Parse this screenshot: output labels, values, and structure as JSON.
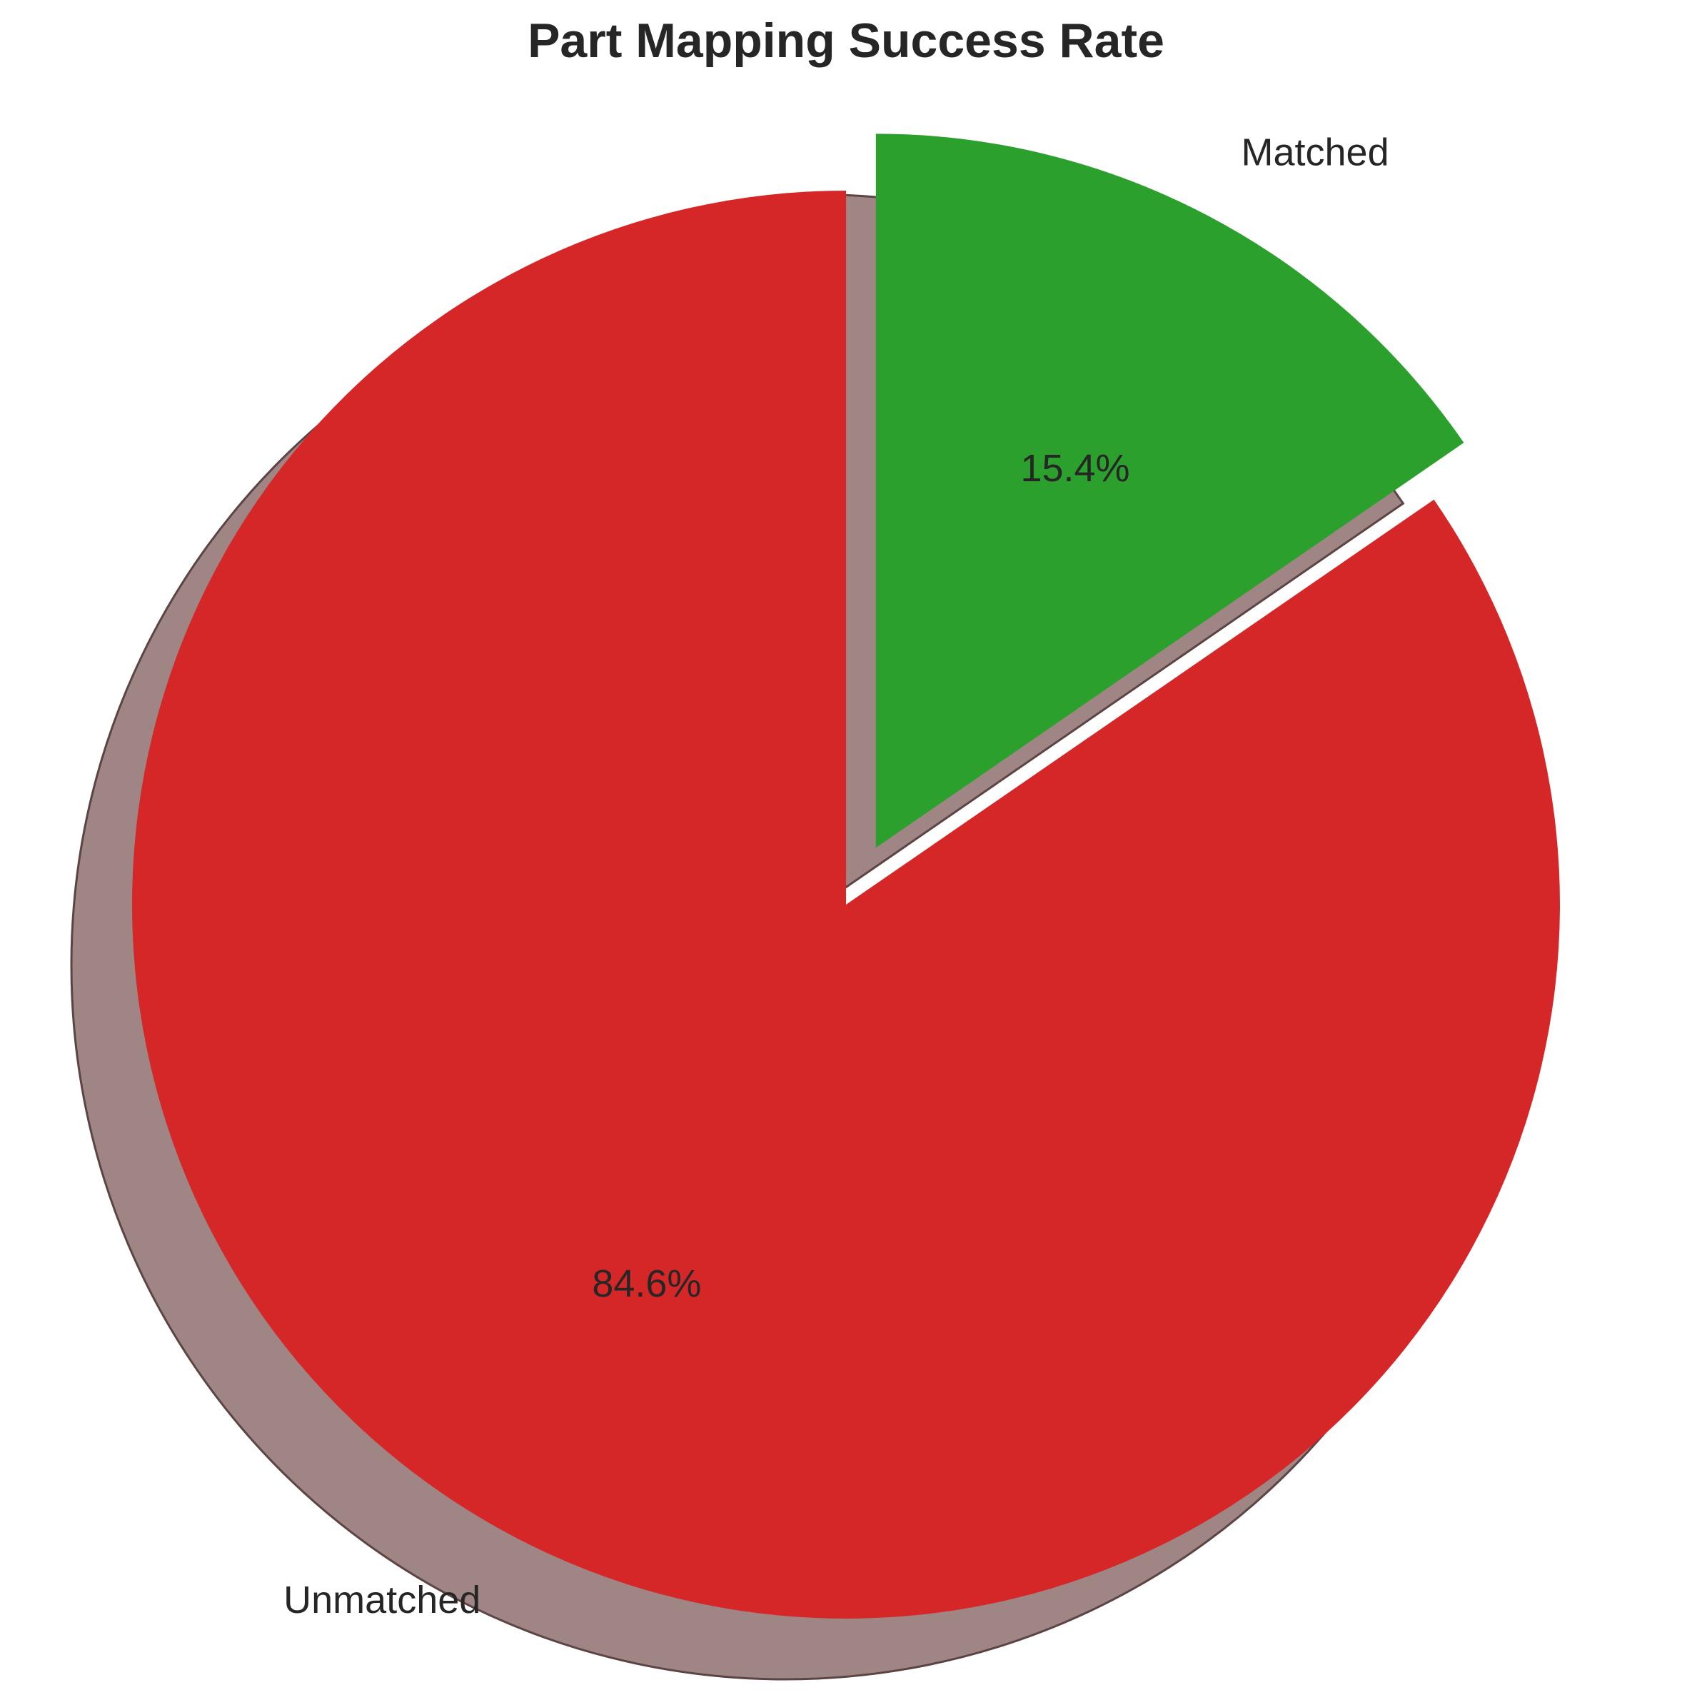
{
  "chart_data": {
    "type": "pie",
    "title": "Part Mapping Success Rate",
    "slices": [
      {
        "label": "Matched",
        "pct_label": "15.4%",
        "value": 15.4,
        "color": "#2ca02c",
        "exploded": true
      },
      {
        "label": "Unmatched",
        "pct_label": "84.6%",
        "value": 84.6,
        "color": "#d62728",
        "exploded": false
      }
    ],
    "start_angle_deg": 90,
    "direction": "clockwise",
    "shadow": true,
    "shadow_color": "#a08585",
    "edge_color": "#5c4444"
  }
}
